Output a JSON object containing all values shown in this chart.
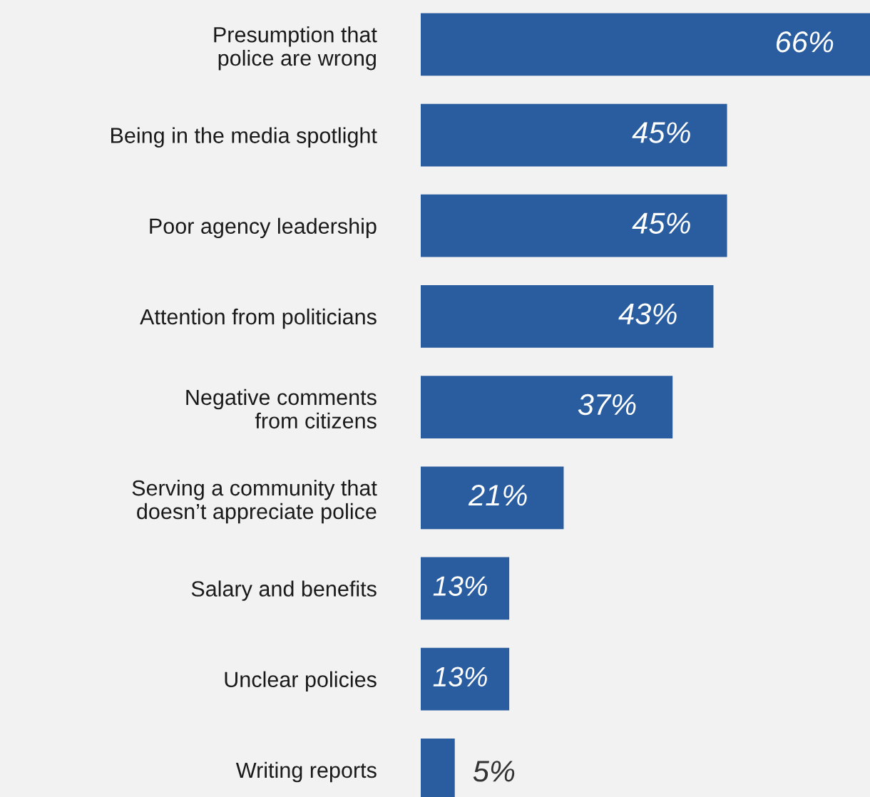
{
  "chart_data": {
    "type": "bar",
    "orientation": "horizontal",
    "categories": [
      "Presumption that\npolice are wrong",
      "Being in the media spotlight",
      "Poor agency leadership",
      "Attention from politicians",
      "Negative comments\nfrom citizens",
      "Serving a community that\ndoesn’t appreciate police",
      "Salary and benefits",
      "Unclear policies",
      "Writing reports"
    ],
    "values": [
      66,
      45,
      45,
      43,
      37,
      21,
      13,
      13,
      5
    ],
    "value_labels": [
      "66%",
      "45%",
      "45%",
      "43%",
      "37%",
      "21%",
      "13%",
      "13%",
      "5%"
    ],
    "color": "#2a5d9f",
    "xlim": [
      0,
      66
    ],
    "tick_labels": "y",
    "grid": false,
    "legend": false
  }
}
